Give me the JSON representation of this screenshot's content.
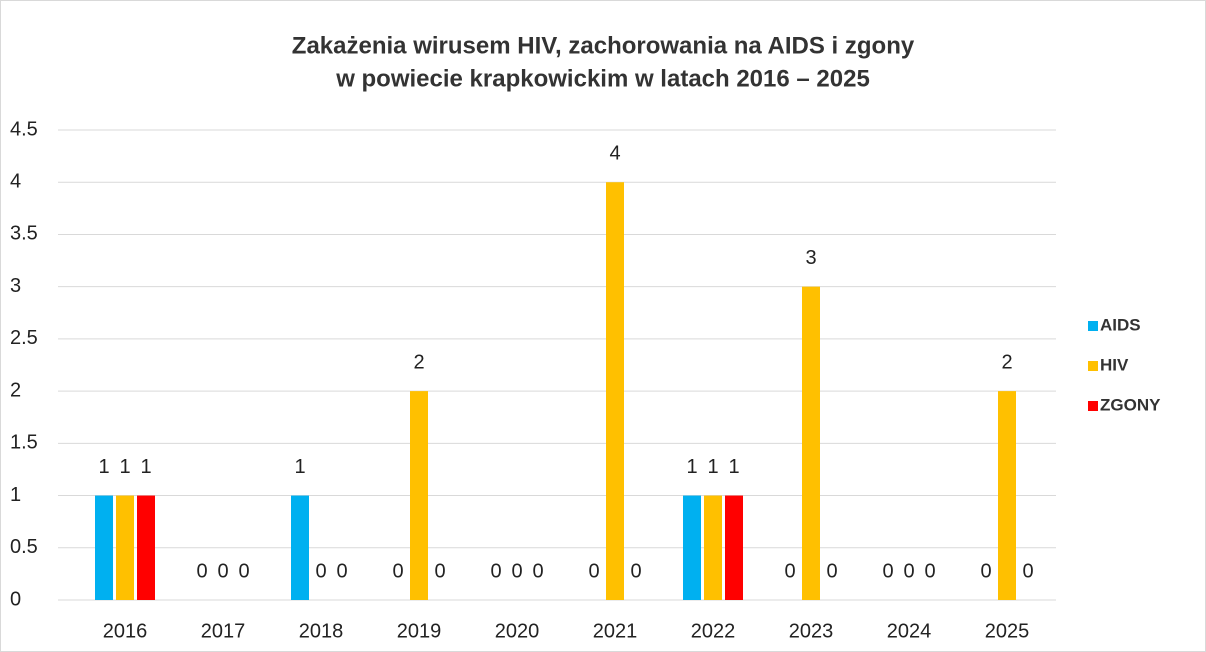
{
  "chart_data": {
    "type": "bar",
    "title": [
      "Zakażenia wirusem HIV, zachorowania na AIDS i zgony",
      "w powiecie krapkowickim w latach 2016 – 2025"
    ],
    "categories": [
      "2016",
      "2017",
      "2018",
      "2019",
      "2020",
      "2021",
      "2022",
      "2023",
      "2024",
      "2025"
    ],
    "series": [
      {
        "name": "AIDS",
        "color": "#00b0f0",
        "values": [
          1,
          0,
          1,
          0,
          0,
          0,
          1,
          0,
          0,
          0
        ]
      },
      {
        "name": "HIV",
        "color": "#ffc000",
        "values": [
          1,
          0,
          0,
          2,
          0,
          4,
          1,
          3,
          0,
          2
        ]
      },
      {
        "name": "ZGONY",
        "color": "#ff0000",
        "values": [
          1,
          0,
          0,
          0,
          0,
          0,
          1,
          0,
          0,
          0
        ]
      }
    ],
    "ylim": [
      0,
      4.5
    ],
    "yticks": [
      0,
      0.5,
      1,
      1.5,
      2,
      2.5,
      3,
      3.5,
      4,
      4.5
    ],
    "grid": true,
    "legend": "right"
  }
}
